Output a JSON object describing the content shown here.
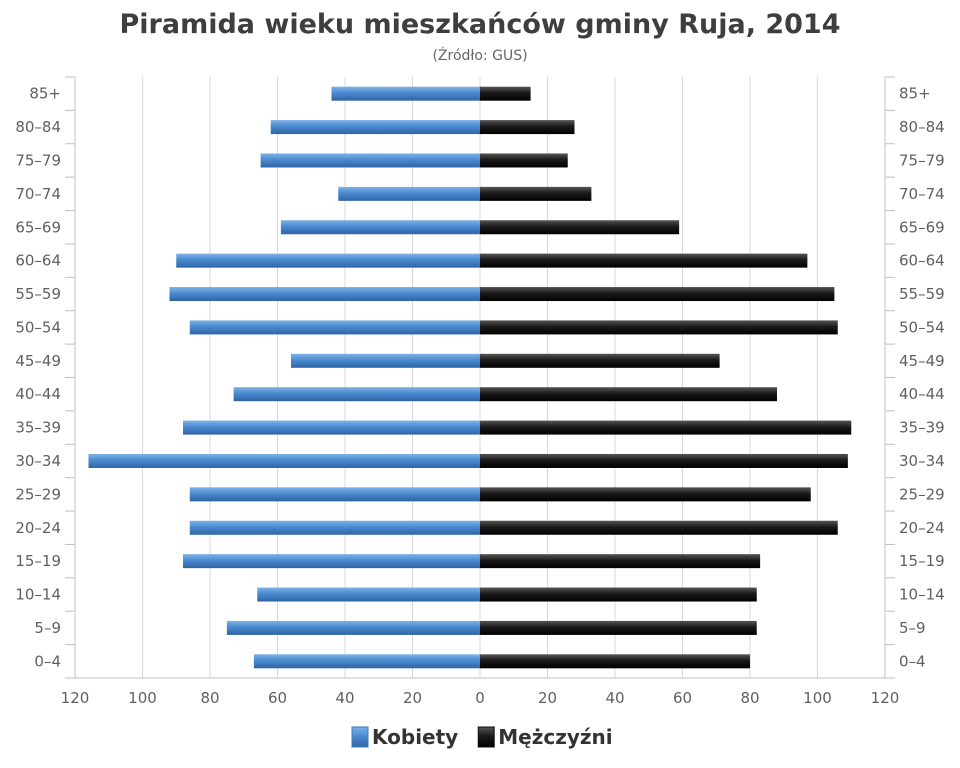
{
  "chart_data": {
    "type": "bar",
    "orientation": "horizontal-pyramid",
    "title": "Piramida wieku mieszkańców gminy Ruja, 2014",
    "subtitle": "(Źródło: GUS)",
    "categories": [
      "85+",
      "80–84",
      "75–79",
      "70–74",
      "65–69",
      "60–64",
      "55–59",
      "50–54",
      "45–49",
      "40–44",
      "35–39",
      "30–34",
      "25–29",
      "20–24",
      "15–19",
      "10–14",
      "5–9",
      "0–4"
    ],
    "series": [
      {
        "name": "Kobiety",
        "color": "#3d7bbf",
        "values": [
          44,
          62,
          65,
          42,
          59,
          90,
          92,
          86,
          56,
          73,
          88,
          116,
          86,
          86,
          88,
          66,
          75,
          67
        ]
      },
      {
        "name": "Mężczyźni",
        "color": "#111111",
        "values": [
          15,
          28,
          26,
          33,
          59,
          97,
          105,
          106,
          71,
          88,
          110,
          109,
          98,
          106,
          83,
          82,
          82,
          80
        ]
      }
    ],
    "xlim": [
      -120,
      120
    ],
    "xticks": [
      "120",
      "100",
      "80",
      "60",
      "40",
      "20",
      "0",
      "20",
      "40",
      "60",
      "80",
      "100",
      "120"
    ],
    "grid": true,
    "legend_position": "bottom-center"
  }
}
